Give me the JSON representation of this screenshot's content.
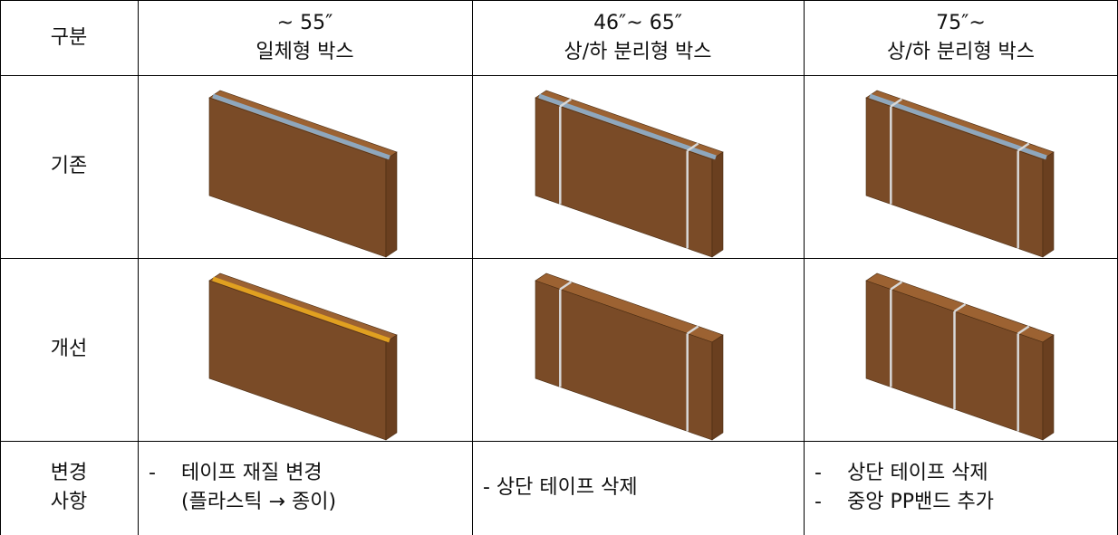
{
  "table": {
    "header": [
      [
        "구분"
      ],
      [
        "~ 55″",
        "일체형 박스"
      ],
      [
        "46″~ 65″",
        "상/하 분리형 박스"
      ],
      [
        "75″~",
        "상/하 분리형 박스"
      ]
    ],
    "rows": [
      {
        "label": [
          "기존"
        ]
      },
      {
        "label": [
          "개선"
        ]
      },
      {
        "label": [
          "변경",
          "사항"
        ],
        "cells": [
          [
            {
              "bullet": "-",
              "text": "테이프 재질 변경"
            },
            {
              "text": "(플라스틱 → 종이)"
            }
          ],
          [
            {
              "text": "- 상단 테이프 삭제"
            }
          ],
          [
            {
              "bullet": "-",
              "text": "상단 테이프 삭제"
            },
            {
              "bullet": "-",
              "text": "중앙 PP밴드 추가"
            }
          ]
        ]
      }
    ]
  }
}
